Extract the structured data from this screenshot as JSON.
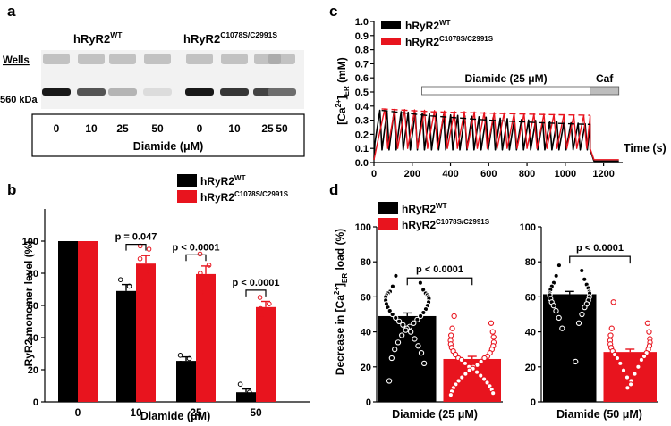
{
  "panel_labels": {
    "a": "a",
    "b": "b",
    "c": "c",
    "d": "d"
  },
  "colors": {
    "wt": "#000000",
    "mut": "#e8141e",
    "fit": "#e8141e",
    "gel_bg": "#f2f2f2",
    "band": "#2a2a2a"
  },
  "panel_a": {
    "wt_base": "hRyR2",
    "wt_sup": "WT",
    "mut_base": "hRyR2",
    "mut_sup": "C1078S/C2991S",
    "wells_label": "Wells",
    "kda_label": "560 kDa",
    "lane_values": [
      "0",
      "10",
      "25",
      "50",
      "0",
      "10",
      "25",
      "50"
    ],
    "band_intensity": [
      1.0,
      0.72,
      0.26,
      0.07,
      1.0,
      0.86,
      0.8,
      0.6
    ],
    "axis_label": "Diamide (μM)"
  },
  "chart_data": [
    {
      "id": "b",
      "type": "bar",
      "title": "",
      "categories": [
        "0",
        "10",
        "25",
        "50"
      ],
      "series": [
        {
          "name_base": "hRyR2",
          "name_sup": "WT",
          "color": "#000000",
          "values": [
            100,
            69,
            25.5,
            6
          ],
          "errors": [
            0,
            4,
            2.5,
            2
          ],
          "points": [
            [],
            [
              76,
              72,
              65,
              60,
              66
            ],
            [
              29,
              27,
              24,
              20,
              16
            ],
            [
              11,
              6,
              4,
              3,
              2
            ]
          ]
        },
        {
          "name_base": "hRyR2",
          "name_sup": "C1078S/C2991S",
          "color": "#e8141e",
          "values": [
            100,
            86,
            79.5,
            59
          ],
          "errors": [
            0,
            5,
            5,
            3.5
          ],
          "points": [
            [],
            [
              97,
              95,
              89,
              81,
              76
            ],
            [
              92,
              85,
              80,
              73,
              68
            ],
            [
              65,
              61,
              58,
              56,
              54
            ]
          ]
        }
      ],
      "xlabel": "Diamide (μM)",
      "ylabel": "RyR2 monomer level (%)",
      "ylim": [
        0,
        120
      ],
      "yticks": [
        0,
        20,
        40,
        60,
        80,
        100
      ],
      "annotations": [
        "p = 0.047",
        "p < 0.0001",
        "p < 0.0001"
      ],
      "legend_position": "top-right"
    },
    {
      "id": "c",
      "type": "line",
      "title": "",
      "series": [
        {
          "name_base": "hRyR2",
          "name_sup": "WT",
          "color": "#000000",
          "oscillation": {
            "start": 5,
            "end": 1130,
            "period": 37,
            "peak_start": 0.37,
            "peak_end": 0.27,
            "trough": 0.09
          },
          "post_caffeine": 0.01
        },
        {
          "name_base": "hRyR2",
          "name_sup": "C1078S/C2991S",
          "color": "#e8141e",
          "oscillation": {
            "start": 20,
            "end": 1130,
            "period": 52,
            "peak_start": 0.38,
            "peak_end": 0.33,
            "trough": 0.1
          },
          "post_caffeine": 0.02
        }
      ],
      "fits": [
        {
          "color": "#e8141e",
          "x": [
            40,
            300,
            600,
            900,
            1130
          ],
          "y": [
            0.38,
            0.36,
            0.35,
            0.34,
            0.335
          ]
        },
        {
          "color": "#000000",
          "x": [
            40,
            300,
            600,
            900,
            1130
          ],
          "y": [
            0.37,
            0.33,
            0.3,
            0.28,
            0.27
          ]
        }
      ],
      "xlabel": "Time (s)",
      "ylabel_base": "[Ca",
      "ylabel_sup": "2+",
      "ylabel_mid": "]",
      "ylabel_sub": "ER",
      "ylabel_end": " (mM)",
      "xlim": [
        0,
        1300
      ],
      "xticks": [
        0,
        200,
        400,
        600,
        800,
        1000,
        1200
      ],
      "ylim": [
        0,
        1.0
      ],
      "yticks": [
        0,
        0.1,
        0.2,
        0.3,
        0.4,
        0.5,
        0.6,
        0.7,
        0.8,
        0.9,
        1.0
      ],
      "ytick_labels": [
        "0.0",
        "0.1",
        "0.2",
        "0.3",
        "0.4",
        "0.5",
        "0.6",
        "0.7",
        "0.8",
        "0.9",
        "1.0"
      ],
      "treatments": [
        {
          "label": "Diamide (25 μM)",
          "start": 250,
          "end": 1130,
          "fill": "#ffffff"
        },
        {
          "label": "Caf",
          "start": 1130,
          "end": 1280,
          "fill": "#bdbdbd"
        }
      ],
      "legend_position": "top-left"
    },
    {
      "id": "d1",
      "type": "bar",
      "title": "",
      "categories": [
        "WT",
        "C1078S/C2991S"
      ],
      "values": [
        49,
        24.5
      ],
      "errors": [
        1.8,
        1.5
      ],
      "colors": [
        "#000000",
        "#e8141e"
      ],
      "points_wt": [
        72,
        68,
        66,
        64,
        63,
        62,
        62,
        61,
        61,
        60,
        60,
        59,
        58,
        57,
        56,
        55,
        54,
        53,
        52,
        51,
        50,
        49,
        48,
        47,
        46,
        45,
        44,
        43,
        42,
        41,
        40,
        38,
        36,
        34,
        32,
        30,
        28,
        25,
        22,
        12
      ],
      "points_mut": [
        49,
        45,
        42,
        40,
        38,
        37,
        35,
        34,
        33,
        32,
        31,
        30,
        29,
        28,
        27,
        26,
        25,
        25,
        24,
        23,
        22,
        21,
        20,
        20,
        19,
        18,
        17,
        16,
        15,
        14,
        13,
        12,
        11,
        10,
        9,
        8,
        7,
        6,
        5,
        4
      ],
      "xlabel": "Diamide (25 μM)",
      "ylabel_text": "Decrease in [Ca",
      "ylabel_sup": "2+",
      "ylabel_mid": "]",
      "ylabel_sub": "ER",
      "ylabel_end": " load (%)",
      "ylim": [
        0,
        100
      ],
      "yticks": [
        0,
        20,
        40,
        60,
        80,
        100
      ],
      "annotation": "p < 0.0001",
      "legend": [
        {
          "name_base": "hRyR2",
          "name_sup": "WT",
          "color": "#000000"
        },
        {
          "name_base": "hRyR2",
          "name_sup": "C1078S/C2991S",
          "color": "#e8141e"
        }
      ],
      "legend_position": "top-left"
    },
    {
      "id": "d2",
      "type": "bar",
      "title": "",
      "categories": [
        "WT",
        "C1078S/C2991S"
      ],
      "values": [
        61.5,
        28.5
      ],
      "errors": [
        1.6,
        1.6
      ],
      "colors": [
        "#000000",
        "#e8141e"
      ],
      "points_wt": [
        78,
        75,
        72,
        70,
        68,
        67,
        66,
        65,
        64,
        63,
        62,
        62,
        61,
        60,
        59,
        58,
        57,
        56,
        55,
        54,
        52,
        50,
        48,
        45,
        42,
        23
      ],
      "points_mut": [
        57,
        45,
        42,
        40,
        38,
        36,
        35,
        34,
        33,
        32,
        31,
        30,
        29,
        28,
        27,
        26,
        25,
        24,
        22,
        20,
        18,
        16,
        14,
        12,
        10,
        8
      ],
      "xlabel": "Diamide (50 μM)",
      "ylim": [
        0,
        100
      ],
      "yticks": [
        0,
        20,
        40,
        60,
        80,
        100
      ],
      "annotation": "p < 0.0001"
    }
  ]
}
